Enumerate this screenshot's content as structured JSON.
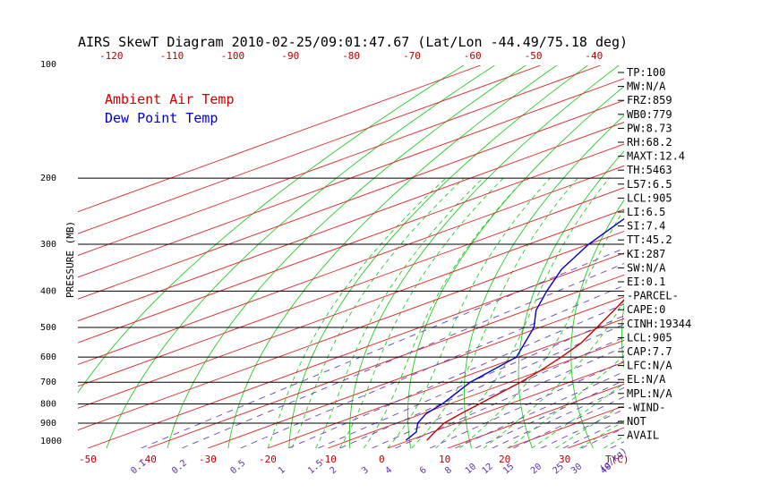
{
  "title": "AIRS SkewT Diagram 2010-02-25/09:01:47.67 (Lat/Lon -44.49/75.18 deg)",
  "colors": {
    "temp": "#cc0000",
    "dew": "#0000cc",
    "isotherm": "#dd2222",
    "dry_adiabat": "#22cc22",
    "moist_adiabat": "#22cc22",
    "mixing_ratio": "#6a3fc4",
    "isobar": "#000000",
    "axis_text": "#b00000"
  },
  "chart_data": {
    "type": "line",
    "chart_subtype": "skew-T log-P diagram",
    "title": "AIRS SkewT Diagram 2010-02-25/09:01:47.67 (Lat/Lon -44.49/75.18 deg)",
    "ylabel": "PRESSURE (MB)",
    "y_scale": "log",
    "ylim": [
      1050,
      100
    ],
    "xlim": [
      -52,
      40
    ],
    "x_unit_label": "T(C)",
    "mixing_ratio_unit_label": "(g/kg)",
    "pressure_ticks": [
      100,
      200,
      300,
      400,
      500,
      600,
      700,
      800,
      900,
      1000
    ],
    "isobar_lines": [
      200,
      300,
      400,
      500,
      600,
      700,
      800,
      900
    ],
    "bottom_temp_ticks": [
      -50,
      -40,
      -30,
      -20,
      -10,
      0,
      10,
      20,
      30
    ],
    "top_temp_ticks": [
      -120,
      -110,
      -100,
      -90,
      -80,
      -70,
      -60,
      -50,
      -40
    ],
    "mixing_ratio_labels": [
      "0.1",
      "0.2",
      "0.5",
      "1",
      "1.5",
      "2",
      "3",
      "4",
      "6",
      "8",
      "10",
      "12",
      "15",
      "20",
      "25",
      "30",
      "40"
    ],
    "legend": [
      {
        "label": "Ambient Air Temp",
        "color": "#cc0000"
      },
      {
        "label": "Dew Point Temp",
        "color": "#0000cc"
      }
    ],
    "series": [
      {
        "name": "Ambient Air Temp",
        "points": [
          [
            1000,
            2.9
          ],
          [
            950,
            0.4
          ],
          [
            900,
            -2.1
          ],
          [
            850,
            -3.6
          ],
          [
            800,
            -5.0
          ],
          [
            750,
            -6.5
          ],
          [
            700,
            -8.1
          ],
          [
            650,
            -10.2
          ],
          [
            600,
            -12.8
          ],
          [
            550,
            -16.0
          ],
          [
            500,
            -20.5
          ],
          [
            450,
            -25.5
          ],
          [
            400,
            -31.2
          ],
          [
            350,
            -37.0
          ],
          [
            300,
            -43.5
          ],
          [
            250,
            -47.0
          ],
          [
            200,
            -50.0
          ],
          [
            150,
            -55.0
          ],
          [
            120,
            -58.0
          ],
          [
            100,
            -62.0
          ]
        ]
      },
      {
        "name": "Dew Point Temp",
        "points": [
          [
            1000,
            -0.6
          ],
          [
            950,
            -2.7
          ],
          [
            900,
            -6.5
          ],
          [
            850,
            -9.4
          ],
          [
            800,
            -11.2
          ],
          [
            700,
            -16.5
          ],
          [
            600,
            -20.3
          ],
          [
            500,
            -31.0
          ],
          [
            450,
            -38.5
          ],
          [
            400,
            -45.5
          ],
          [
            350,
            -53.0
          ],
          [
            300,
            -60.0
          ],
          [
            250,
            -66.7
          ],
          [
            200,
            -74.0
          ],
          [
            180,
            -76.0
          ],
          [
            150,
            -79.0
          ],
          [
            120,
            -79.5
          ],
          [
            100,
            -78.5
          ]
        ]
      }
    ]
  },
  "indices": [
    {
      "text": "TP:100"
    },
    {
      "text": "MW:N/A"
    },
    {
      "text": "FRZ:859"
    },
    {
      "text": "WB0:779"
    },
    {
      "text": "PW:8.73"
    },
    {
      "text": "RH:68.2"
    },
    {
      "text": "MAXT:12.4"
    },
    {
      "text": "TH:5463"
    },
    {
      "text": "L57:6.5"
    },
    {
      "text": "LCL:905"
    },
    {
      "text": "LI:6.5"
    },
    {
      "text": "SI:7.4"
    },
    {
      "text": "TT:45.2"
    },
    {
      "text": "KI:287"
    },
    {
      "text": "SW:N/A"
    },
    {
      "text": "EI:0.1"
    },
    {
      "text": "-PARCEL-"
    },
    {
      "text": "CAPE:0"
    },
    {
      "text": "CINH:19344"
    },
    {
      "text": "LCL:905"
    },
    {
      "text": "CAP:7.7"
    },
    {
      "text": "LFC:N/A"
    },
    {
      "text": "EL:N/A"
    },
    {
      "text": "MPL:N/A"
    },
    {
      "text": "-WIND-"
    },
    {
      "text": "NOT"
    },
    {
      "text": "AVAIL"
    }
  ]
}
